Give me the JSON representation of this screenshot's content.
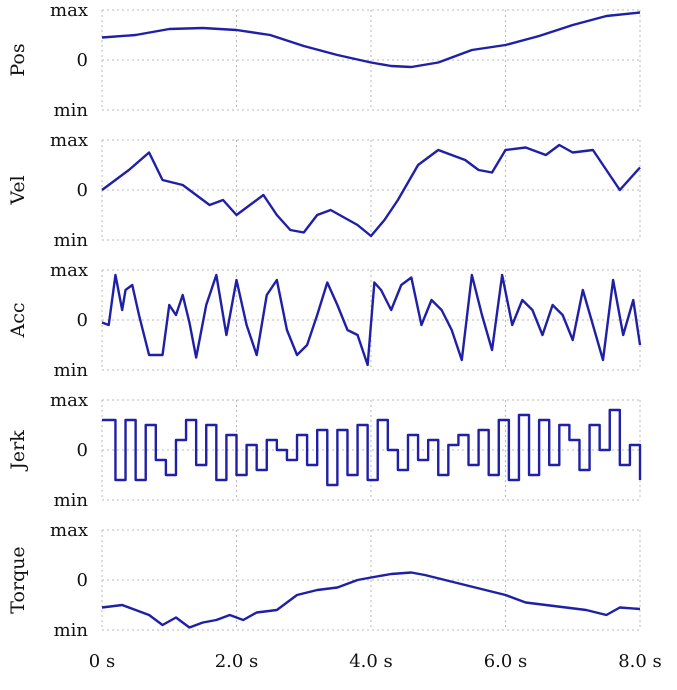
{
  "chart_data": {
    "type": "line",
    "x_range": [
      0,
      8
    ],
    "x_ticks": [
      "0 s",
      "2.0 s",
      "4.0 s",
      "6.0 s",
      "8.0 s"
    ],
    "y_tick_labels": [
      "max",
      "0",
      "min"
    ],
    "grid": true,
    "color": "#1f1fa8",
    "panels": [
      {
        "ylabel": "Pos",
        "style": "smooth",
        "x": [
          0,
          0.5,
          1.0,
          1.5,
          2.0,
          2.5,
          3.0,
          3.5,
          4.0,
          4.3,
          4.6,
          5.0,
          5.5,
          6.0,
          6.5,
          7.0,
          7.5,
          8.0
        ],
        "y": [
          0.45,
          0.5,
          0.62,
          0.64,
          0.6,
          0.5,
          0.28,
          0.1,
          -0.05,
          -0.12,
          -0.14,
          -0.05,
          0.2,
          0.3,
          0.48,
          0.7,
          0.88,
          0.95
        ]
      },
      {
        "ylabel": "Vel",
        "style": "line",
        "x": [
          0,
          0.2,
          0.4,
          0.7,
          0.9,
          1.2,
          1.4,
          1.6,
          1.8,
          2.0,
          2.2,
          2.4,
          2.6,
          2.8,
          3.0,
          3.2,
          3.4,
          3.6,
          3.8,
          4.0,
          4.2,
          4.4,
          4.7,
          5.0,
          5.2,
          5.4,
          5.6,
          5.8,
          6.0,
          6.3,
          6.6,
          6.8,
          7.0,
          7.3,
          7.5,
          7.7,
          8.0
        ],
        "y": [
          0.0,
          0.2,
          0.4,
          0.75,
          0.2,
          0.1,
          -0.1,
          -0.3,
          -0.2,
          -0.5,
          -0.3,
          -0.1,
          -0.5,
          -0.8,
          -0.85,
          -0.5,
          -0.4,
          -0.55,
          -0.7,
          -0.92,
          -0.6,
          -0.2,
          0.5,
          0.8,
          0.7,
          0.6,
          0.4,
          0.35,
          0.8,
          0.85,
          0.7,
          0.9,
          0.75,
          0.8,
          0.4,
          0.0,
          0.45
        ]
      },
      {
        "ylabel": "Acc",
        "style": "line",
        "x": [
          0,
          0.1,
          0.2,
          0.3,
          0.35,
          0.45,
          0.55,
          0.7,
          0.9,
          1.0,
          1.1,
          1.2,
          1.3,
          1.4,
          1.55,
          1.7,
          1.85,
          2.0,
          2.15,
          2.3,
          2.45,
          2.6,
          2.75,
          2.9,
          3.05,
          3.2,
          3.35,
          3.5,
          3.65,
          3.8,
          3.95,
          4.05,
          4.15,
          4.3,
          4.45,
          4.6,
          4.75,
          4.9,
          5.05,
          5.2,
          5.35,
          5.5,
          5.65,
          5.8,
          5.95,
          6.1,
          6.25,
          6.4,
          6.55,
          6.7,
          6.85,
          7.0,
          7.15,
          7.3,
          7.45,
          7.6,
          7.75,
          7.9,
          8.0
        ],
        "y": [
          -0.05,
          -0.1,
          0.9,
          0.2,
          0.6,
          0.7,
          0.1,
          -0.7,
          -0.7,
          0.3,
          0.1,
          0.5,
          -0.05,
          -0.75,
          0.3,
          0.9,
          -0.3,
          0.8,
          -0.1,
          -0.7,
          0.5,
          0.8,
          -0.2,
          -0.7,
          -0.5,
          0.1,
          0.75,
          0.3,
          -0.2,
          -0.3,
          -0.9,
          0.75,
          0.6,
          0.2,
          0.7,
          0.85,
          -0.1,
          0.4,
          0.2,
          -0.2,
          -0.8,
          0.9,
          0.1,
          -0.6,
          0.9,
          -0.1,
          0.4,
          0.2,
          -0.3,
          0.3,
          0.1,
          -0.4,
          0.6,
          -0.1,
          -0.8,
          0.8,
          -0.3,
          0.4,
          -0.5
        ]
      },
      {
        "ylabel": "Jerk",
        "style": "step",
        "x": [
          0,
          0.2,
          0.35,
          0.5,
          0.65,
          0.8,
          0.95,
          1.1,
          1.25,
          1.4,
          1.55,
          1.7,
          1.85,
          2.0,
          2.15,
          2.3,
          2.45,
          2.6,
          2.75,
          2.9,
          3.05,
          3.2,
          3.35,
          3.5,
          3.65,
          3.8,
          3.95,
          4.1,
          4.25,
          4.4,
          4.55,
          4.7,
          4.85,
          5.0,
          5.15,
          5.3,
          5.45,
          5.6,
          5.75,
          5.9,
          6.05,
          6.2,
          6.35,
          6.5,
          6.65,
          6.8,
          6.95,
          7.1,
          7.25,
          7.4,
          7.55,
          7.7,
          7.85,
          8.0
        ],
        "y": [
          0.6,
          -0.6,
          0.6,
          -0.6,
          0.5,
          -0.2,
          -0.5,
          0.2,
          0.6,
          -0.3,
          0.5,
          -0.6,
          0.3,
          -0.5,
          0.1,
          -0.4,
          0.2,
          0.0,
          -0.2,
          0.3,
          -0.3,
          0.4,
          -0.7,
          0.4,
          -0.5,
          0.5,
          -0.6,
          0.6,
          0.0,
          -0.4,
          0.3,
          -0.2,
          0.2,
          -0.5,
          0.1,
          0.3,
          -0.3,
          0.4,
          -0.5,
          0.6,
          -0.6,
          0.7,
          -0.5,
          0.6,
          -0.3,
          0.5,
          0.2,
          -0.4,
          0.5,
          0.0,
          0.8,
          -0.3,
          0.1,
          -0.6
        ]
      },
      {
        "ylabel": "Torque",
        "style": "line",
        "x": [
          0,
          0.3,
          0.5,
          0.7,
          0.9,
          1.1,
          1.3,
          1.5,
          1.7,
          1.9,
          2.1,
          2.3,
          2.6,
          2.9,
          3.2,
          3.5,
          3.8,
          4.0,
          4.3,
          4.6,
          4.8,
          5.1,
          5.4,
          5.7,
          6.0,
          6.3,
          6.6,
          6.9,
          7.2,
          7.5,
          7.7,
          8.0
        ],
        "y": [
          -0.55,
          -0.5,
          -0.6,
          -0.7,
          -0.9,
          -0.75,
          -0.95,
          -0.85,
          -0.8,
          -0.7,
          -0.8,
          -0.65,
          -0.6,
          -0.3,
          -0.2,
          -0.15,
          0.0,
          0.05,
          0.12,
          0.15,
          0.1,
          0.0,
          -0.1,
          -0.2,
          -0.3,
          -0.45,
          -0.5,
          -0.55,
          -0.6,
          -0.7,
          -0.55,
          -0.58
        ]
      }
    ]
  }
}
